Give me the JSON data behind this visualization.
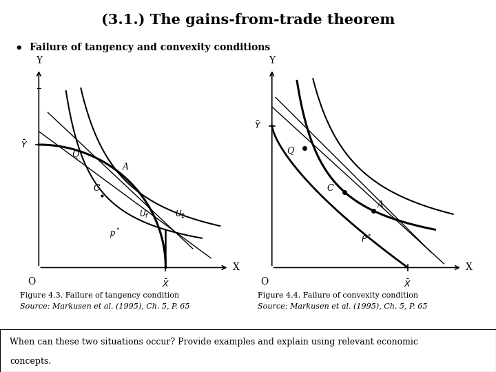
{
  "title": "(3.1.) The gains-from-trade theorem",
  "bullet": "Failure of tangency and convexity conditions",
  "fig43_caption": "Figure 4.3. Failure of tangency condition",
  "fig43_source": "Source: Markusen et al. (1995), Ch. 5, P. 65",
  "fig44_caption": "Figure 4.4. Failure of convexity condition",
  "fig44_source": "Source: Markusen et al. (1995), Ch. 5, P. 65",
  "bottom_text1": "When can these two situations occur? Provide examples and explain using relevant economic",
  "bottom_text2": "concepts.",
  "bg_color": "#ffffff",
  "bottom_bg": "#e8e8e8",
  "text_color": "#000000"
}
